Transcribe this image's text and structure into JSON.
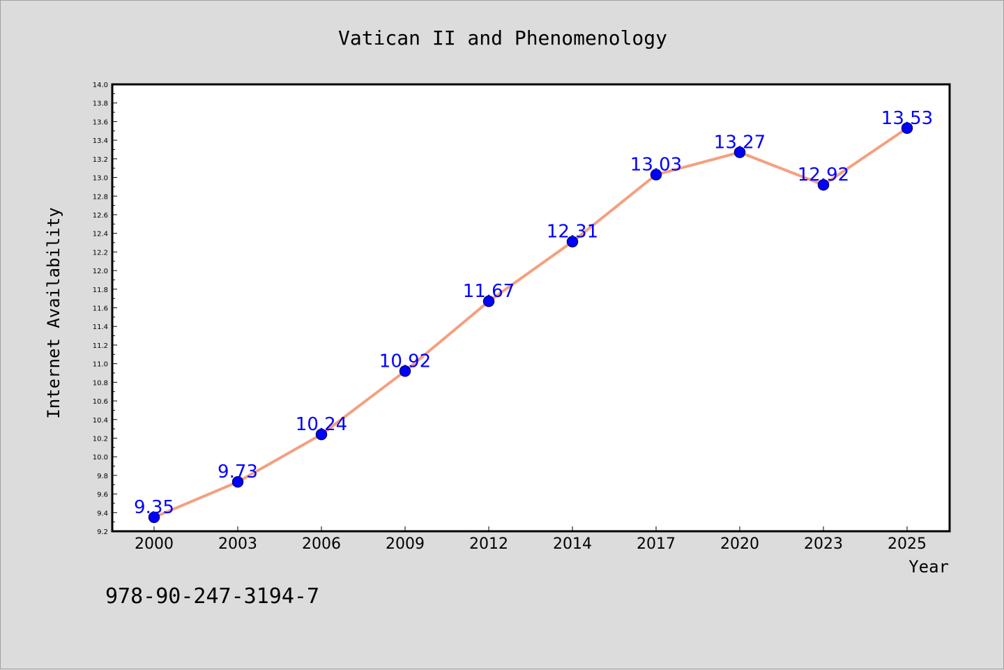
{
  "chart_data": {
    "type": "line",
    "title": "Vatican II and Phenomenology",
    "xlabel": "Year",
    "ylabel": "Internet Availability",
    "categories": [
      "2000",
      "2003",
      "2006",
      "2009",
      "2012",
      "2014",
      "2017",
      "2020",
      "2023",
      "2025"
    ],
    "series": [
      {
        "values": [
          9.35,
          9.73,
          10.24,
          10.92,
          11.67,
          12.31,
          13.03,
          13.27,
          12.92,
          13.53
        ],
        "data_labels": [
          "9.35",
          "9.73",
          "10.24",
          "10.92",
          "11.67",
          "12.31",
          "13.03",
          "13.27",
          "12.92",
          "13.53"
        ]
      }
    ],
    "ylim": [
      9.2,
      14.0
    ],
    "yticks": [
      "9.2",
      "9.4",
      "9.6",
      "9.8",
      "10.0",
      "10.2",
      "10.4",
      "10.6",
      "10.8",
      "11.0",
      "11.2",
      "11.4",
      "11.6",
      "11.8",
      "12.0",
      "12.2",
      "12.4",
      "12.6",
      "12.8",
      "13.0",
      "13.2",
      "13.4",
      "13.6",
      "13.8",
      "14.0"
    ],
    "grid": false,
    "colors": {
      "line": "#f4a07f",
      "marker_fill": "#0000ff",
      "marker_edge": "#000080",
      "data_label": "#0000ff",
      "background": "#dcdcdc",
      "plot_background": "#ffffff"
    }
  },
  "footer": {
    "text": "978-90-247-3194-7"
  }
}
